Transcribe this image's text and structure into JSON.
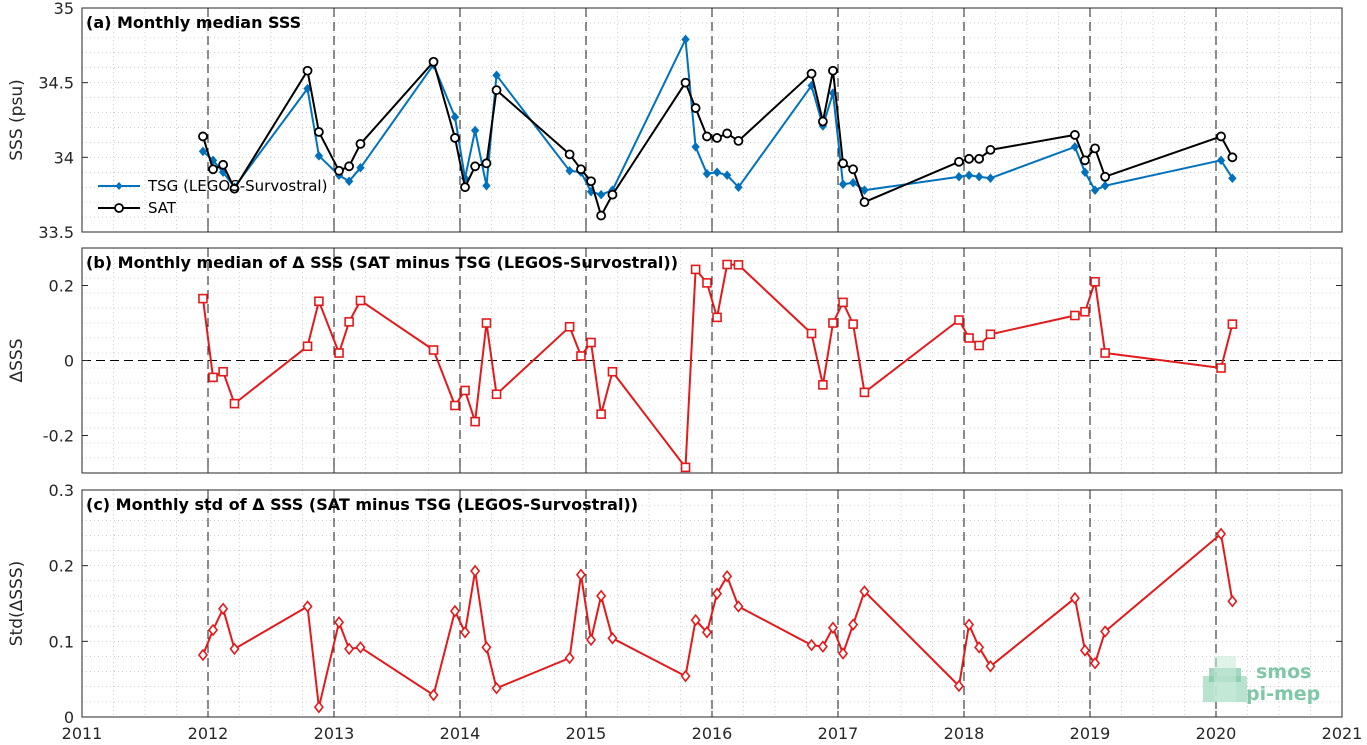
{
  "colors": {
    "tsg": "#0072BD",
    "sat": "#000000",
    "diff": "#E31A1C",
    "axes": "#262626",
    "grid": "#b0b0b0",
    "logo": "#7fc7a6"
  },
  "logo": {
    "line1": "smos",
    "line2": "pi-mep",
    "icon": "smos-logo-icon"
  },
  "chart_data": [
    {
      "type": "line",
      "title": "(a) Monthly median SSS",
      "ylabel": "SSS (psu)",
      "xlim": [
        2011,
        2021
      ],
      "ylim": [
        33.5,
        35
      ],
      "yticks": [
        33.5,
        34,
        34.5,
        35
      ],
      "ytick_labels": [
        "33.5",
        "34",
        "34.5",
        "35"
      ],
      "legend": "middle-left",
      "grid": true,
      "series": [
        {
          "name": "TSG (LEGOS-Survostral)",
          "marker": "diamond-filled",
          "x": [
            2011.96,
            2012.04,
            2012.12,
            2012.21,
            2012.79,
            2012.88,
            2013.04,
            2013.12,
            2013.21,
            2013.79,
            2013.96,
            2014.04,
            2014.12,
            2014.21,
            2014.29,
            2014.87,
            2014.96,
            2015.04,
            2015.12,
            2015.21,
            2015.79,
            2015.87,
            2015.96,
            2016.04,
            2016.12,
            2016.21,
            2016.79,
            2016.88,
            2016.96,
            2017.04,
            2017.12,
            2017.21,
            2017.96,
            2018.04,
            2018.12,
            2018.21,
            2018.88,
            2018.96,
            2019.04,
            2019.12,
            2020.04,
            2020.13
          ],
          "y": [
            34.04,
            33.98,
            33.9,
            33.8,
            34.46,
            34.01,
            33.88,
            33.84,
            33.93,
            34.62,
            34.27,
            33.86,
            34.18,
            33.81,
            34.55,
            33.91,
            33.9,
            33.77,
            33.75,
            33.78,
            34.79,
            34.07,
            33.89,
            33.9,
            33.88,
            33.8,
            34.48,
            34.21,
            34.43,
            33.82,
            33.83,
            33.78,
            33.87,
            33.88,
            33.87,
            33.86,
            34.07,
            33.9,
            33.78,
            33.81,
            33.98,
            33.86
          ]
        },
        {
          "name": "SAT",
          "marker": "circle-open",
          "x": [
            2011.96,
            2012.04,
            2012.12,
            2012.21,
            2012.79,
            2012.88,
            2013.04,
            2013.12,
            2013.21,
            2013.79,
            2013.96,
            2014.04,
            2014.12,
            2014.21,
            2014.29,
            2014.87,
            2014.96,
            2015.04,
            2015.12,
            2015.21,
            2015.79,
            2015.87,
            2015.96,
            2016.04,
            2016.12,
            2016.21,
            2016.79,
            2016.88,
            2016.96,
            2017.04,
            2017.12,
            2017.21,
            2017.96,
            2018.04,
            2018.12,
            2018.21,
            2018.88,
            2018.96,
            2019.04,
            2019.12,
            2020.04,
            2020.13
          ],
          "y": [
            34.14,
            33.92,
            33.95,
            33.79,
            34.58,
            34.17,
            33.91,
            33.94,
            34.09,
            34.64,
            34.13,
            33.8,
            33.94,
            33.96,
            34.45,
            34.02,
            33.92,
            33.84,
            33.61,
            33.75,
            34.5,
            34.33,
            34.14,
            34.13,
            34.16,
            34.11,
            34.56,
            34.24,
            34.58,
            33.96,
            33.92,
            33.7,
            33.97,
            33.99,
            33.99,
            34.05,
            34.15,
            33.98,
            34.06,
            33.87,
            34.14,
            34.0
          ]
        }
      ]
    },
    {
      "type": "line",
      "title": "(b) Monthly median of Δ SSS (SAT minus TSG (LEGOS-Survostral))",
      "ylabel": "ΔSSS",
      "xlim": [
        2011,
        2021
      ],
      "ylim": [
        -0.3,
        0.3
      ],
      "yticks": [
        -0.2,
        0,
        0.2
      ],
      "ytick_labels": [
        "-0.2",
        "0",
        "0.2"
      ],
      "grid": true,
      "zero_line": true,
      "series": [
        {
          "name": "",
          "marker": "square-open",
          "x": [
            2011.96,
            2012.04,
            2012.12,
            2012.21,
            2012.79,
            2012.88,
            2013.04,
            2013.12,
            2013.21,
            2013.79,
            2013.96,
            2014.04,
            2014.12,
            2014.21,
            2014.29,
            2014.87,
            2014.96,
            2015.04,
            2015.12,
            2015.21,
            2015.79,
            2015.87,
            2015.96,
            2016.04,
            2016.12,
            2016.21,
            2016.79,
            2016.88,
            2016.96,
            2017.04,
            2017.12,
            2017.21,
            2017.96,
            2018.04,
            2018.12,
            2018.21,
            2018.88,
            2018.96,
            2019.04,
            2019.12,
            2020.04,
            2020.13
          ],
          "y": [
            0.165,
            -0.045,
            -0.03,
            -0.115,
            0.038,
            0.158,
            0.02,
            0.103,
            0.16,
            0.028,
            -0.12,
            -0.08,
            -0.163,
            0.1,
            -0.09,
            0.09,
            0.012,
            0.048,
            -0.143,
            -0.03,
            -0.285,
            0.243,
            0.207,
            0.115,
            0.256,
            0.255,
            0.072,
            -0.065,
            0.1,
            0.155,
            0.097,
            -0.085,
            0.108,
            0.06,
            0.04,
            0.07,
            0.12,
            0.13,
            0.21,
            0.02,
            -0.02,
            0.097
          ]
        }
      ]
    },
    {
      "type": "line",
      "title": "(c) Monthly std of Δ SSS (SAT minus TSG (LEGOS-Survostral))",
      "ylabel": "Std(ΔSSS)",
      "xlim": [
        2011,
        2021
      ],
      "ylim": [
        0,
        0.3
      ],
      "yticks": [
        0,
        0.1,
        0.2,
        0.3
      ],
      "ytick_labels": [
        "0",
        "0.1",
        "0.2",
        "0.3"
      ],
      "xticks": [
        2011,
        2012,
        2013,
        2014,
        2015,
        2016,
        2017,
        2018,
        2019,
        2020,
        2021
      ],
      "xtick_labels": [
        "2011",
        "2012",
        "2013",
        "2014",
        "2015",
        "2016",
        "2017",
        "2018",
        "2019",
        "2020",
        "2021"
      ],
      "grid": true,
      "series": [
        {
          "name": "",
          "marker": "diamond-open",
          "x": [
            2011.96,
            2012.04,
            2012.12,
            2012.21,
            2012.79,
            2012.88,
            2013.04,
            2013.12,
            2013.21,
            2013.79,
            2013.96,
            2014.04,
            2014.12,
            2014.21,
            2014.29,
            2014.87,
            2014.96,
            2015.04,
            2015.12,
            2015.21,
            2015.79,
            2015.87,
            2015.96,
            2016.04,
            2016.12,
            2016.21,
            2016.79,
            2016.88,
            2016.96,
            2017.04,
            2017.12,
            2017.21,
            2017.96,
            2018.04,
            2018.12,
            2018.21,
            2018.88,
            2018.96,
            2019.04,
            2019.12,
            2020.04,
            2020.13
          ],
          "y": [
            0.082,
            0.115,
            0.143,
            0.09,
            0.146,
            0.013,
            0.125,
            0.09,
            0.092,
            0.029,
            0.14,
            0.112,
            0.193,
            0.092,
            0.038,
            0.078,
            0.188,
            0.102,
            0.16,
            0.104,
            0.054,
            0.128,
            0.112,
            0.163,
            0.186,
            0.146,
            0.095,
            0.093,
            0.118,
            0.084,
            0.122,
            0.166,
            0.041,
            0.122,
            0.092,
            0.067,
            0.157,
            0.088,
            0.071,
            0.113,
            0.242,
            0.153
          ]
        }
      ]
    }
  ]
}
